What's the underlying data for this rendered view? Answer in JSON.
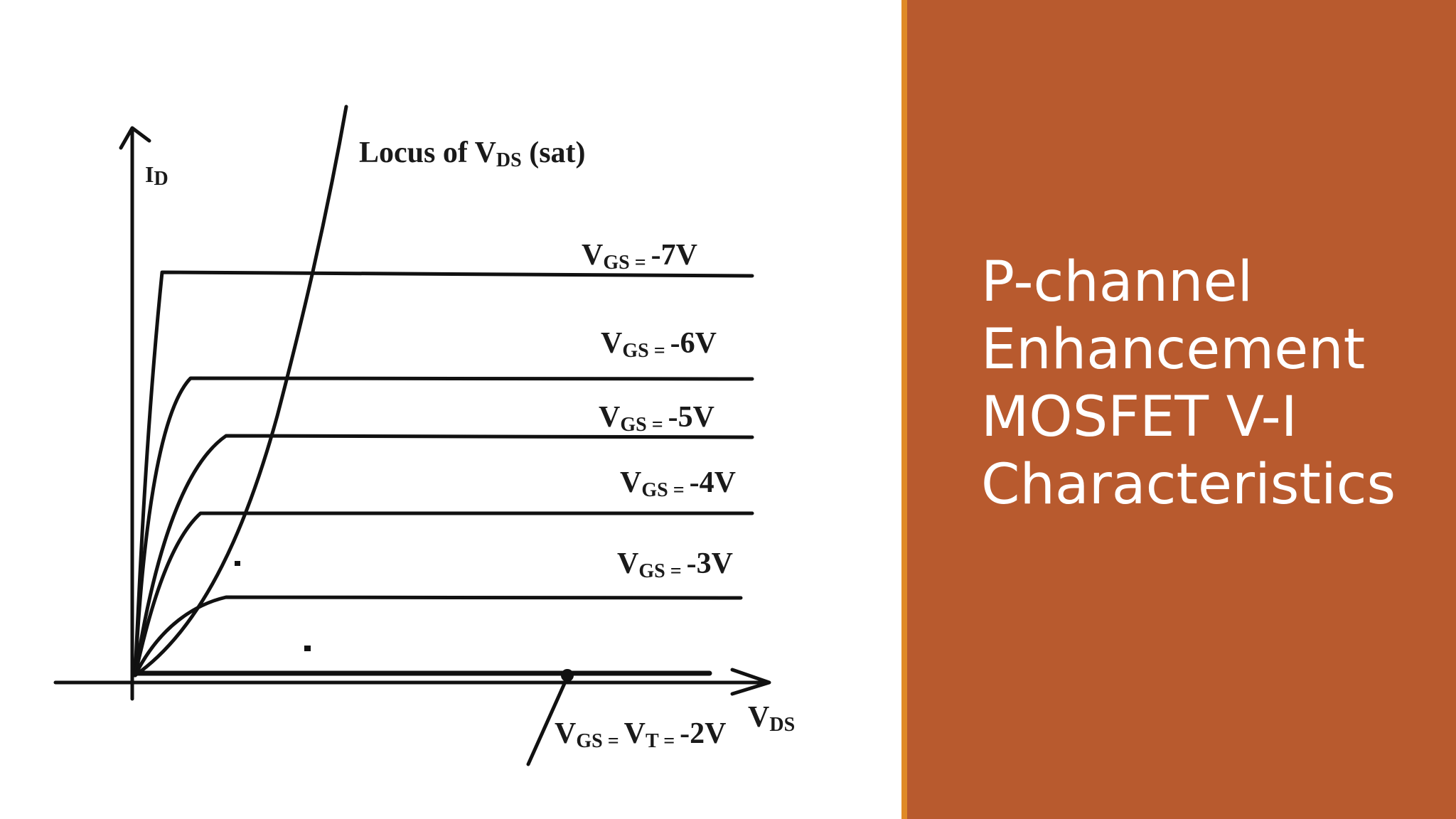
{
  "slide": {
    "title_lines": [
      "P-channel",
      "Enhancement",
      "MOSFET V-I",
      "Characteristics"
    ]
  },
  "diagram": {
    "y_axis": {
      "main": "I",
      "sub": "D"
    },
    "x_axis": {
      "main": "V",
      "sub": "DS"
    },
    "locus_label": {
      "prefix": "Locus of V",
      "sub": "DS",
      "suffix": " (sat)"
    },
    "curves": [
      {
        "main": "V",
        "sub": "GS",
        "eq": " = ",
        "value": "-7V"
      },
      {
        "main": "V",
        "sub": "GS",
        "eq": " = ",
        "value": "-6V"
      },
      {
        "main": "V",
        "sub": "GS",
        "eq": " = ",
        "value": "-5V"
      },
      {
        "main": "V",
        "sub": "GS",
        "eq": " = ",
        "value": "-4V"
      },
      {
        "main": "V",
        "sub": "GS",
        "eq": " = ",
        "value": "-3V"
      }
    ],
    "threshold_label": {
      "v1": "V",
      "s1": "GS",
      "eq1": " = ",
      "v2": "V",
      "s2": "T",
      "eq2": " = ",
      "value": "-2V"
    }
  },
  "colors": {
    "panel": "#b85a2e",
    "panel_edge": "#e08a26",
    "title_text": "#ffffff",
    "ink": "#111111"
  }
}
